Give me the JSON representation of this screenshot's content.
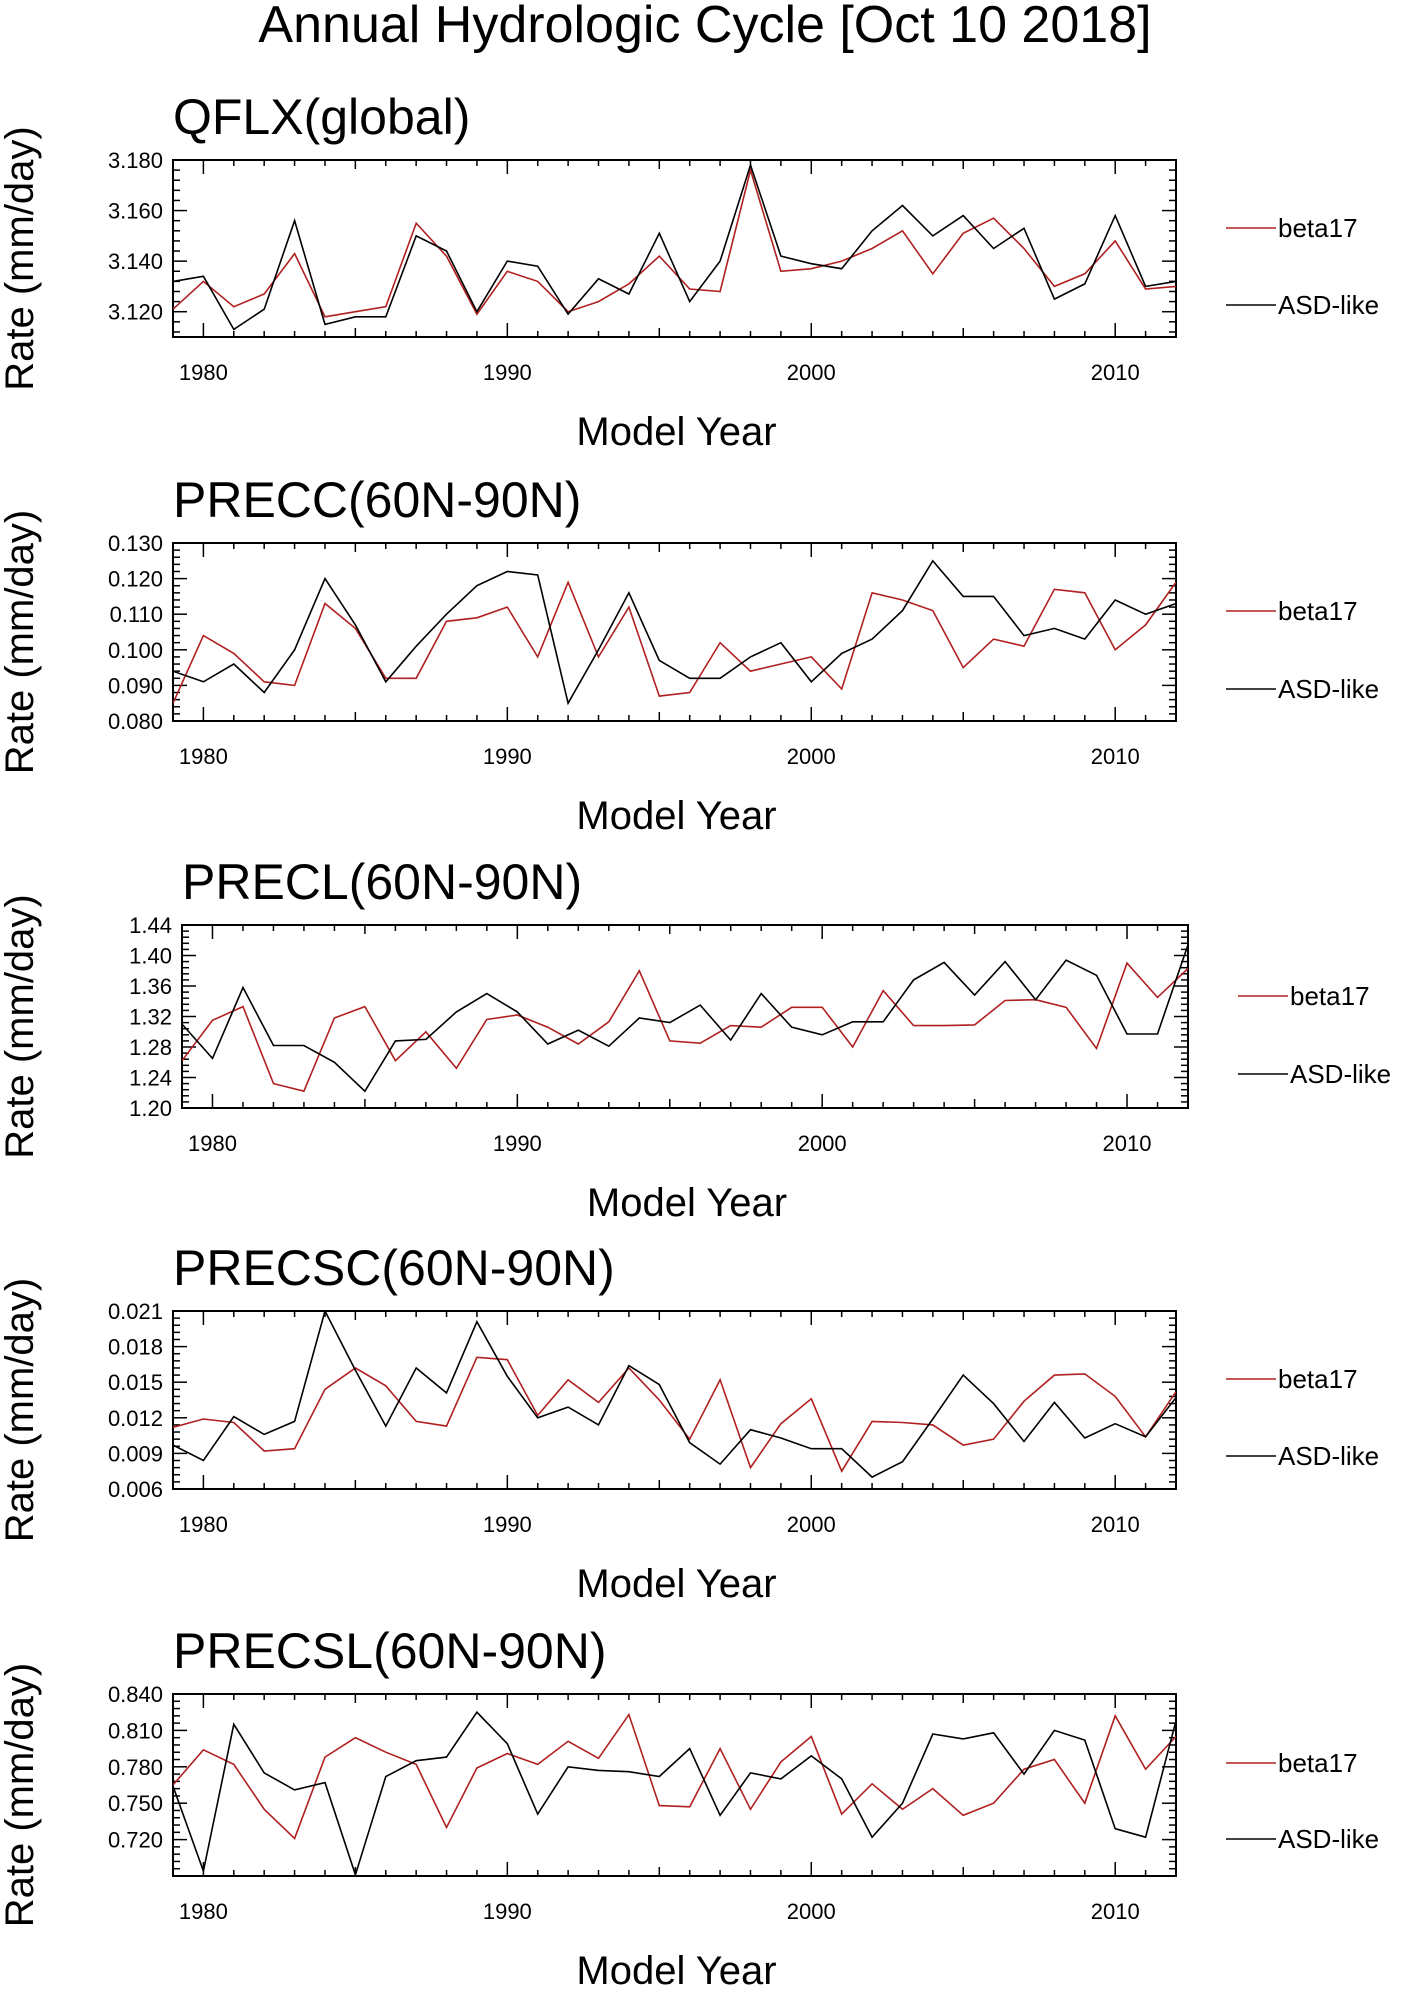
{
  "title": "Annual Hydrologic Cycle [Oct 10 2018]",
  "colors": {
    "beta17": "#b02020",
    "asd": "#000000"
  },
  "chart_data": [
    {
      "type": "line",
      "title": "QFLX(global)",
      "xlabel": "Model Year",
      "ylabel": "Rate (mm/day)",
      "xlim": [
        1979,
        2012
      ],
      "ylim": [
        3.11,
        3.18
      ],
      "xticks": [
        1980,
        1990,
        2000,
        2010
      ],
      "yticks": [
        "3.120",
        "3.140",
        "3.160",
        "3.180"
      ],
      "x": [
        1979,
        1980,
        1981,
        1982,
        1983,
        1984,
        1985,
        1986,
        1987,
        1988,
        1989,
        1990,
        1991,
        1992,
        1993,
        1994,
        1995,
        1996,
        1997,
        1998,
        1999,
        2000,
        2001,
        2002,
        2003,
        2004,
        2005,
        2006,
        2007,
        2008,
        2009,
        2010,
        2011,
        2012
      ],
      "series": [
        {
          "name": "beta17",
          "color": "#b02020",
          "values": [
            3.121,
            3.132,
            3.122,
            3.127,
            3.143,
            3.118,
            3.12,
            3.122,
            3.155,
            3.142,
            3.119,
            3.136,
            3.132,
            3.12,
            3.124,
            3.131,
            3.142,
            3.129,
            3.128,
            3.176,
            3.136,
            3.137,
            3.14,
            3.145,
            3.152,
            3.135,
            3.151,
            3.157,
            3.145,
            3.13,
            3.135,
            3.148,
            3.129,
            3.13
          ]
        },
        {
          "name": "ASD-like",
          "color": "#000000",
          "values": [
            3.132,
            3.134,
            3.113,
            3.121,
            3.156,
            3.115,
            3.118,
            3.118,
            3.15,
            3.144,
            3.12,
            3.14,
            3.138,
            3.119,
            3.133,
            3.127,
            3.151,
            3.124,
            3.14,
            3.178,
            3.142,
            3.139,
            3.137,
            3.152,
            3.162,
            3.15,
            3.158,
            3.145,
            3.153,
            3.125,
            3.131,
            3.158,
            3.13,
            3.132
          ]
        }
      ]
    },
    {
      "type": "line",
      "title": "PRECC(60N-90N)",
      "xlabel": "Model Year",
      "ylabel": "Rate (mm/day)",
      "xlim": [
        1979,
        2012
      ],
      "ylim": [
        0.08,
        0.13
      ],
      "xticks": [
        1980,
        1990,
        2000,
        2010
      ],
      "yticks": [
        "0.080",
        "0.090",
        "0.100",
        "0.110",
        "0.120",
        "0.130"
      ],
      "x": [
        1979,
        1980,
        1981,
        1982,
        1983,
        1984,
        1985,
        1986,
        1987,
        1988,
        1989,
        1990,
        1991,
        1992,
        1993,
        1994,
        1995,
        1996,
        1997,
        1998,
        1999,
        2000,
        2001,
        2002,
        2003,
        2004,
        2005,
        2006,
        2007,
        2008,
        2009,
        2010,
        2011,
        2012
      ],
      "series": [
        {
          "name": "beta17",
          "color": "#b02020",
          "values": [
            0.085,
            0.104,
            0.099,
            0.091,
            0.09,
            0.113,
            0.106,
            0.092,
            0.092,
            0.108,
            0.109,
            0.112,
            0.098,
            0.119,
            0.098,
            0.112,
            0.087,
            0.088,
            0.102,
            0.094,
            0.096,
            0.098,
            0.089,
            0.116,
            0.114,
            0.111,
            0.095,
            0.103,
            0.101,
            0.117,
            0.116,
            0.1,
            0.107,
            0.119
          ]
        },
        {
          "name": "ASD-like",
          "color": "#000000",
          "values": [
            0.094,
            0.091,
            0.096,
            0.088,
            0.1,
            0.12,
            0.107,
            0.091,
            0.101,
            0.11,
            0.118,
            0.122,
            0.121,
            0.085,
            0.1,
            0.116,
            0.097,
            0.092,
            0.092,
            0.098,
            0.102,
            0.091,
            0.099,
            0.103,
            0.111,
            0.125,
            0.115,
            0.115,
            0.104,
            0.106,
            0.103,
            0.114,
            0.11,
            0.113
          ]
        }
      ]
    },
    {
      "type": "line",
      "title": "PRECL(60N-90N)",
      "xlabel": "Model Year",
      "ylabel": "Rate (mm/day)",
      "xlim": [
        1979,
        2012
      ],
      "ylim": [
        1.2,
        1.44
      ],
      "xticks": [
        1980,
        1990,
        2000,
        2010
      ],
      "yticks": [
        "1.20",
        "1.24",
        "1.28",
        "1.32",
        "1.36",
        "1.40",
        "1.44"
      ],
      "x": [
        1979,
        1980,
        1981,
        1982,
        1983,
        1984,
        1985,
        1986,
        1987,
        1988,
        1989,
        1990,
        1991,
        1992,
        1993,
        1994,
        1995,
        1996,
        1997,
        1998,
        1999,
        2000,
        2001,
        2002,
        2003,
        2004,
        2005,
        2006,
        2007,
        2008,
        2009,
        2010,
        2011,
        2012
      ],
      "series": [
        {
          "name": "beta17",
          "color": "#b02020",
          "values": [
            1.262,
            1.315,
            1.333,
            1.232,
            1.222,
            1.318,
            1.333,
            1.262,
            1.3,
            1.252,
            1.316,
            1.322,
            1.306,
            1.284,
            1.313,
            1.38,
            1.288,
            1.285,
            1.308,
            1.306,
            1.332,
            1.332,
            1.28,
            1.354,
            1.308,
            1.308,
            1.309,
            1.341,
            1.342,
            1.332,
            1.278,
            1.39,
            1.345,
            1.383
          ]
        },
        {
          "name": "ASD-like",
          "color": "#000000",
          "values": [
            1.31,
            1.265,
            1.358,
            1.282,
            1.282,
            1.26,
            1.222,
            1.288,
            1.29,
            1.326,
            1.35,
            1.326,
            1.284,
            1.302,
            1.281,
            1.318,
            1.312,
            1.335,
            1.289,
            1.35,
            1.306,
            1.296,
            1.313,
            1.313,
            1.368,
            1.391,
            1.348,
            1.392,
            1.342,
            1.394,
            1.374,
            1.297,
            1.297,
            1.414
          ]
        }
      ]
    },
    {
      "type": "line",
      "title": "PRECSC(60N-90N)",
      "xlabel": "Model Year",
      "ylabel": "Rate (mm/day)",
      "xlim": [
        1979,
        2012
      ],
      "ylim": [
        0.006,
        0.021
      ],
      "xticks": [
        1980,
        1990,
        2000,
        2010
      ],
      "yticks": [
        "0.006",
        "0.009",
        "0.012",
        "0.015",
        "0.018",
        "0.021"
      ],
      "x": [
        1979,
        1980,
        1981,
        1982,
        1983,
        1984,
        1985,
        1986,
        1987,
        1988,
        1989,
        1990,
        1991,
        1992,
        1993,
        1994,
        1995,
        1996,
        1997,
        1998,
        1999,
        2000,
        2001,
        2002,
        2003,
        2004,
        2005,
        2006,
        2007,
        2008,
        2009,
        2010,
        2011,
        2012
      ],
      "series": [
        {
          "name": "beta17",
          "color": "#b02020",
          "values": [
            0.0112,
            0.0119,
            0.0116,
            0.0092,
            0.0094,
            0.0144,
            0.0162,
            0.0147,
            0.0117,
            0.0113,
            0.0171,
            0.0169,
            0.0122,
            0.0152,
            0.0133,
            0.0162,
            0.0135,
            0.0102,
            0.0152,
            0.0078,
            0.0115,
            0.0136,
            0.0075,
            0.0117,
            0.0116,
            0.0114,
            0.0097,
            0.0102,
            0.0134,
            0.0156,
            0.0157,
            0.0138,
            0.0104,
            0.0142
          ]
        },
        {
          "name": "ASD-like",
          "color": "#000000",
          "values": [
            0.0097,
            0.0084,
            0.0121,
            0.0106,
            0.0117,
            0.021,
            0.016,
            0.0113,
            0.0162,
            0.0141,
            0.0201,
            0.0155,
            0.012,
            0.0129,
            0.0114,
            0.0164,
            0.0148,
            0.0099,
            0.0081,
            0.011,
            0.0103,
            0.0094,
            0.0094,
            0.007,
            0.0083,
            0.0119,
            0.0156,
            0.0132,
            0.01,
            0.0133,
            0.0103,
            0.0115,
            0.0104,
            0.0137
          ]
        }
      ]
    },
    {
      "type": "line",
      "title": "PRECSL(60N-90N)",
      "xlabel": "Model Year",
      "ylabel": "Rate (mm/day)",
      "xlim": [
        1979,
        2012
      ],
      "ylim": [
        0.69,
        0.84
      ],
      "xticks": [
        1980,
        1990,
        2000,
        2010
      ],
      "yticks": [
        "0.720",
        "0.750",
        "0.780",
        "0.810",
        "0.840"
      ],
      "x": [
        1979,
        1980,
        1981,
        1982,
        1983,
        1984,
        1985,
        1986,
        1987,
        1988,
        1989,
        1990,
        1991,
        1992,
        1993,
        1994,
        1995,
        1996,
        1997,
        1998,
        1999,
        2000,
        2001,
        2002,
        2003,
        2004,
        2005,
        2006,
        2007,
        2008,
        2009,
        2010,
        2011,
        2012
      ],
      "series": [
        {
          "name": "beta17",
          "color": "#b02020",
          "values": [
            0.765,
            0.794,
            0.782,
            0.745,
            0.721,
            0.788,
            0.804,
            0.792,
            0.782,
            0.73,
            0.779,
            0.791,
            0.782,
            0.801,
            0.787,
            0.823,
            0.748,
            0.747,
            0.795,
            0.745,
            0.784,
            0.805,
            0.741,
            0.766,
            0.745,
            0.762,
            0.74,
            0.75,
            0.778,
            0.786,
            0.75,
            0.822,
            0.778,
            0.805
          ]
        },
        {
          "name": "ASD-like",
          "color": "#000000",
          "values": [
            0.764,
            0.694,
            0.815,
            0.775,
            0.761,
            0.767,
            0.691,
            0.772,
            0.785,
            0.788,
            0.825,
            0.799,
            0.741,
            0.78,
            0.777,
            0.776,
            0.772,
            0.795,
            0.74,
            0.775,
            0.77,
            0.789,
            0.77,
            0.722,
            0.75,
            0.807,
            0.803,
            0.808,
            0.774,
            0.81,
            0.802,
            0.729,
            0.722,
            0.818
          ]
        }
      ]
    }
  ]
}
